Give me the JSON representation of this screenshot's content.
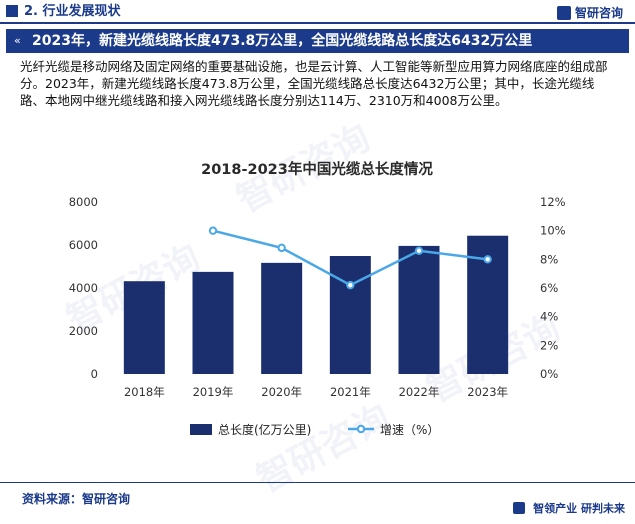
{
  "section": {
    "title": "2. 行业发展现状"
  },
  "brand": {
    "name": "智研咨询"
  },
  "headline": {
    "arrow_icon": "double-chevron-left-icon",
    "text": "2023年，新建光缆线路长度473.8万公里，全国光缆线路总长度达6432万公里"
  },
  "body": {
    "paragraph": "光纤光缆是移动网络及固定网络的重要基础设施，也是云计算、人工智能等新型应用算力网络底座的组成部分。2023年，新建光缆线路长度473.8万公里，全国光缆线路总长度达6432万公里；其中，长途光缆线路、本地网中继光缆线路和接入网光缆线路长度分别达114万、2310万和4008万公里。"
  },
  "chart_data": {
    "type": "bar",
    "title": "2018-2023年中国光缆总长度情况",
    "categories": [
      "2018年",
      "2019年",
      "2020年",
      "2021年",
      "2022年",
      "2023年"
    ],
    "series": [
      {
        "name": "总长度(亿万公里)",
        "type": "bar",
        "axis": "left",
        "color": "#1b2f6e",
        "values": [
          4316,
          4750,
          5169,
          5488,
          5958,
          6432
        ]
      },
      {
        "name": "增速（%）",
        "type": "line",
        "axis": "right",
        "color": "#4aa8e8",
        "values": [
          null,
          10.0,
          8.8,
          6.2,
          8.6,
          8.0
        ]
      }
    ],
    "y_left": {
      "min": 0,
      "max": 8000,
      "ticks": [
        "0",
        "2000",
        "4000",
        "6000",
        "8000"
      ]
    },
    "y_right": {
      "min": 0,
      "max": 12,
      "ticks": [
        "0%",
        "2%",
        "4%",
        "6%",
        "8%",
        "10%",
        "12%"
      ]
    },
    "grid": false,
    "legend_position": "bottom"
  },
  "footer": {
    "source": "资料来源：智研咨询",
    "slogan": "智领产业  研判未来"
  },
  "watermark": {
    "text": "智研咨询"
  }
}
